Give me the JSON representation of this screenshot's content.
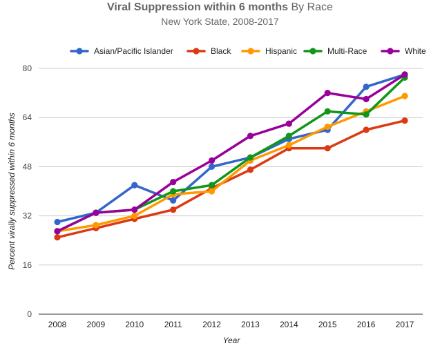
{
  "chart_data": {
    "type": "line",
    "title_bold": "Viral Suppression within 6 months",
    "title_rest": "By Race",
    "subtitle": "New York State, 2008-2017",
    "xlabel": "Year",
    "ylabel": "Percent virally suppressed within 6 months",
    "x": [
      "2008",
      "2009",
      "2010",
      "2011",
      "2012",
      "2013",
      "2014",
      "2015",
      "2016",
      "2017"
    ],
    "yticks": [
      "0",
      "16",
      "32",
      "48",
      "64",
      "80"
    ],
    "ylim": [
      0,
      80
    ],
    "grid": true,
    "legend_position": "top",
    "series": [
      {
        "name": "Asian/Pacific Islander",
        "color": "#3366cc",
        "values": [
          30,
          33,
          42,
          37,
          48,
          51,
          57,
          60,
          74,
          78
        ]
      },
      {
        "name": "Black",
        "color": "#dc3912",
        "values": [
          25,
          28,
          31,
          34,
          41,
          47,
          54,
          54,
          60,
          63
        ]
      },
      {
        "name": "Hispanic",
        "color": "#ff9900",
        "values": [
          27,
          29,
          32,
          39,
          40,
          50,
          55,
          61,
          66,
          71
        ]
      },
      {
        "name": "Multi-Race",
        "color": "#109618",
        "values": [
          27,
          33,
          34,
          40,
          42,
          51,
          58,
          66,
          65,
          77
        ]
      },
      {
        "name": "White",
        "color": "#990099",
        "values": [
          27,
          33,
          34,
          43,
          50,
          58,
          62,
          72,
          70,
          78
        ]
      }
    ]
  }
}
